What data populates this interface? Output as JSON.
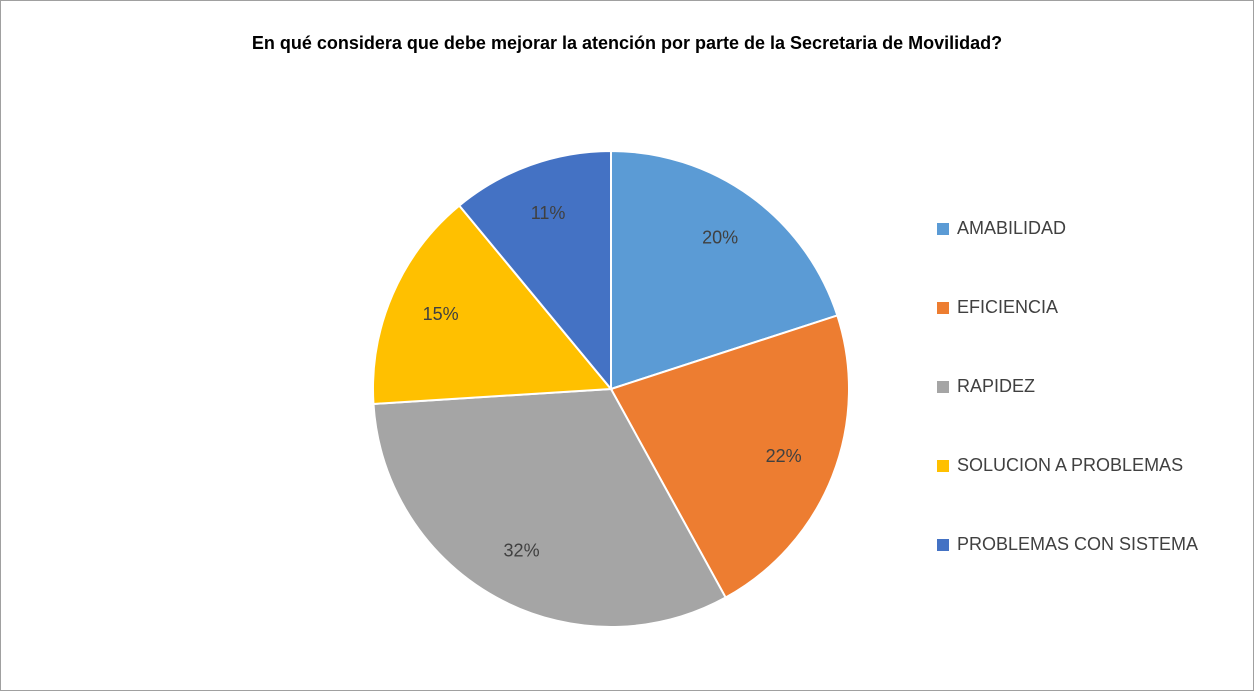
{
  "chart_data": {
    "type": "pie",
    "title": "En qué considera que debe mejorar la atención por parte de la Secretaria de Movilidad?",
    "categories": [
      "AMABILIDAD",
      "EFICIENCIA",
      "RAPIDEZ",
      "SOLUCION A PROBLEMAS",
      "PROBLEMAS CON SISTEMA"
    ],
    "values": [
      20,
      22,
      32,
      15,
      11
    ],
    "value_labels": [
      "20%",
      "22%",
      "32%",
      "15%",
      "11%"
    ],
    "colors": [
      "#5b9bd5",
      "#ed7d31",
      "#a5a5a5",
      "#ffc000",
      "#4472c4"
    ],
    "legend": "right"
  }
}
